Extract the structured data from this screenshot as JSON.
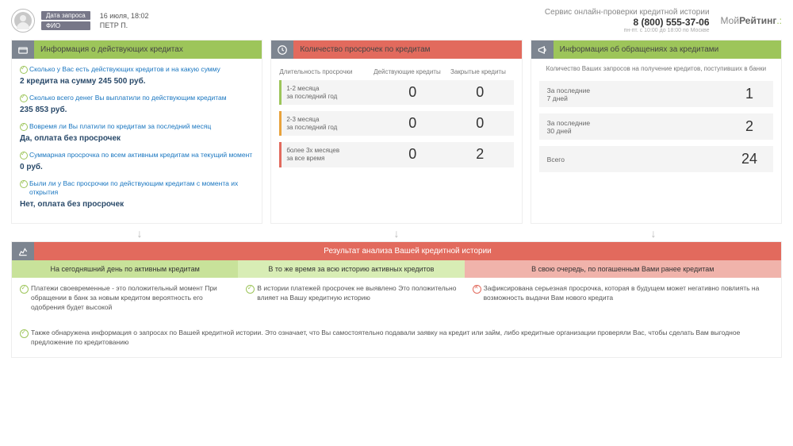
{
  "header": {
    "date_label": "Дата запроса",
    "name_label": "ФИО",
    "date_value": "16 июля, 18:02",
    "name_value": "ПЕТР П.",
    "service_line": "Сервис онлайн-проверки кредитной истории",
    "phone": "8 (800) 555-37-06",
    "hours": "пн-пт. с 10:00 до 18:00 по Москве",
    "logo_pre": "Мой",
    "logo_bold": "Рейтинг"
  },
  "panel1": {
    "title": "Информация о действующих кредитах",
    "qa": [
      {
        "q": "Сколько у Вас есть действующих кредитов и на какую сумму",
        "a": "2 кредита на сумму 245 500 руб."
      },
      {
        "q": "Сколько всего денег Вы выплатили по действующим кредитам",
        "a": "235 853 руб."
      },
      {
        "q": "Вовремя ли Вы платили по кредитам за последний месяц",
        "a": "Да, оплата без просрочек"
      },
      {
        "q": "Суммарная просрочка по всем активным кредитам на текущий момент",
        "a": "0 руб."
      },
      {
        "q": "Были ли у Вас просрочки по действующим кредитам с момента их открытия",
        "a": "Нет, оплата без просрочек"
      }
    ]
  },
  "panel2": {
    "title": "Количество просрочек по кредитам",
    "col1": "Длительность просрочки",
    "col2": "Действующие кредиты",
    "col3": "Закрытые кредиты",
    "rows": [
      {
        "label": "1-2 месяца\nза последний год",
        "v1": "0",
        "v2": "0",
        "cls": "bl-green"
      },
      {
        "label": "2-3 месяца\nза последний год",
        "v1": "0",
        "v2": "0",
        "cls": "bl-orange"
      },
      {
        "label": "более 3х месяцев\nза все время",
        "v1": "0",
        "v2": "2",
        "cls": "bl-red"
      }
    ]
  },
  "panel3": {
    "title": "Информация об обращениях за кредитами",
    "subtitle": "Количество Ваших запросов на получение кредитов, поступивших в банки",
    "rows": [
      {
        "label": "За последние\n7 дней",
        "val": "1"
      },
      {
        "label": "За последние\n30 дней",
        "val": "2"
      },
      {
        "label": "Всего",
        "val": "24"
      }
    ]
  },
  "result": {
    "title": "Результат анализа Вашей кредитной истории",
    "cols": [
      {
        "head": "На сегодняшний день по активным кредитам",
        "cls": "rc-green",
        "items": [
          "Платежи своевременные - это положительный момент При обращении в банк за новым кредитом вероятность его одобрения будет высокой"
        ],
        "red": false,
        "wide": false
      },
      {
        "head": "В то же время за всю историю активных кредитов",
        "cls": "rc-greenl",
        "items": [
          "В истории платежей просрочек не выявлено Это положительно влияет на Вашу кредитную историю"
        ],
        "red": false,
        "wide": false
      },
      {
        "head": "В свою очередь, по погашенным Вами ранее кредитам",
        "cls": "rc-red",
        "items": [
          "Зафиксирована серьезная просрочка, которая в будущем может негативно повлиять на возможность выдачи Вам нового кредита"
        ],
        "red": true,
        "wide": true
      }
    ],
    "footer": "Также обнаружена информация о запросах по Вашей кредитной истории. Это означает, что Вы самостоятельно подавали заявку на кредит или займ, либо кредитные организации проверяли Вас, чтобы сделать Вам выгодное предложение по кредитованию"
  }
}
